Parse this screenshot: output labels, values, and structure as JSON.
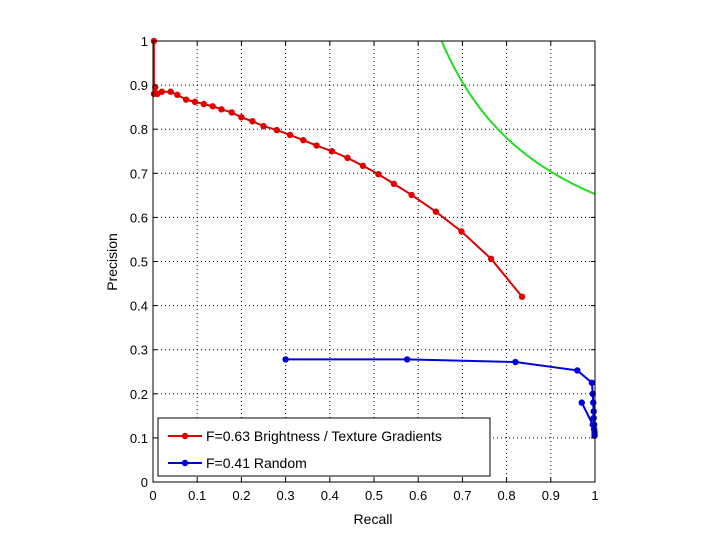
{
  "chart_data": {
    "type": "line",
    "title": "",
    "xlabel": "Recall",
    "ylabel": "Precision",
    "xlim": [
      0,
      1
    ],
    "ylim": [
      0,
      1
    ],
    "grid": true,
    "legend_position": "bottom-left",
    "xticks": [
      0,
      0.1,
      0.2,
      0.3,
      0.4,
      0.5,
      0.6,
      0.7,
      0.8,
      0.9,
      1
    ],
    "yticks": [
      0,
      0.1,
      0.2,
      0.3,
      0.4,
      0.5,
      0.6,
      0.7,
      0.8,
      0.9,
      1
    ],
    "xtick_labels": [
      "0",
      "0.1",
      "0.2",
      "0.3",
      "0.4",
      "0.5",
      "0.6",
      "0.7",
      "0.8",
      "0.9",
      "1"
    ],
    "ytick_labels": [
      "0",
      "0.1",
      "0.2",
      "0.3",
      "0.4",
      "0.5",
      "0.6",
      "0.7",
      "0.8",
      "0.9",
      "1"
    ],
    "series": [
      {
        "name": "F=0.63 Brightness / Texture Gradients",
        "color": "#e00000",
        "marker": "dot",
        "points": [
          [
            0.002,
            1.0
          ],
          [
            0.002,
            0.88
          ],
          [
            0.005,
            0.895
          ],
          [
            0.01,
            0.88
          ],
          [
            0.02,
            0.885
          ],
          [
            0.04,
            0.885
          ],
          [
            0.055,
            0.878
          ],
          [
            0.075,
            0.867
          ],
          [
            0.095,
            0.862
          ],
          [
            0.115,
            0.857
          ],
          [
            0.135,
            0.852
          ],
          [
            0.155,
            0.845
          ],
          [
            0.178,
            0.838
          ],
          [
            0.2,
            0.827
          ],
          [
            0.225,
            0.818
          ],
          [
            0.25,
            0.807
          ],
          [
            0.28,
            0.798
          ],
          [
            0.31,
            0.787
          ],
          [
            0.34,
            0.775
          ],
          [
            0.37,
            0.763
          ],
          [
            0.405,
            0.75
          ],
          [
            0.44,
            0.735
          ],
          [
            0.475,
            0.717
          ],
          [
            0.51,
            0.698
          ],
          [
            0.545,
            0.676
          ],
          [
            0.585,
            0.651
          ],
          [
            0.64,
            0.613
          ],
          [
            0.698,
            0.568
          ],
          [
            0.765,
            0.506
          ],
          [
            0.835,
            0.42
          ]
        ]
      },
      {
        "name": "F=0.41 Random",
        "color": "#0000e0",
        "marker": "dot",
        "points": [
          [
            0.3,
            0.278
          ],
          [
            0.575,
            0.278
          ],
          [
            0.82,
            0.272
          ],
          [
            0.96,
            0.253
          ],
          [
            0.993,
            0.225
          ],
          [
            0.995,
            0.2
          ],
          [
            0.996,
            0.18
          ],
          [
            0.997,
            0.16
          ],
          [
            0.997,
            0.145
          ],
          [
            0.998,
            0.13
          ],
          [
            0.998,
            0.12
          ],
          [
            0.999,
            0.113
          ],
          [
            0.999,
            0.108
          ],
          [
            0.999,
            0.105
          ],
          [
            0.995,
            0.13
          ],
          [
            0.97,
            0.18
          ]
        ]
      }
    ],
    "iso_f_curve": {
      "color": "#22dd22",
      "f_value": 0.79
    }
  }
}
